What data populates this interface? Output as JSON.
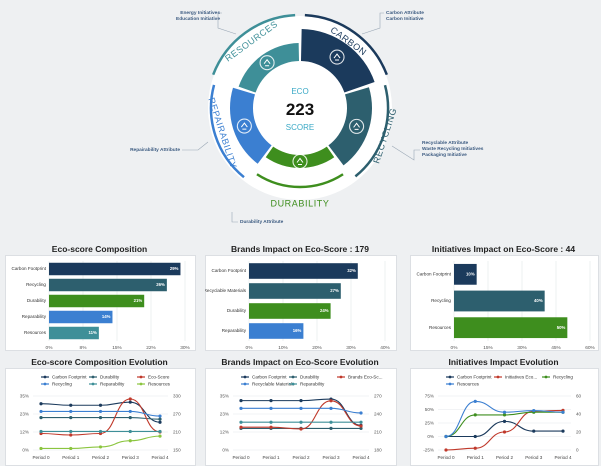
{
  "colors": {
    "carbon": "#1b3a5c",
    "recycling": "#2d5f6e",
    "durability": "#3e8e1e",
    "repairability": "#3b7fd1",
    "resources": "#3e8f98",
    "ecoscore": "#c0392b",
    "line_light": "#8bc53f"
  },
  "wheel": {
    "center_top": "ECO",
    "score": "223",
    "center_bottom": "SCORE",
    "segments": [
      {
        "key": "carbon",
        "label": "CARBON",
        "icon": "footprints-icon",
        "annotations": [
          "Carbon Attribute",
          "Carbon Initiative"
        ]
      },
      {
        "key": "recycling",
        "label": "RECYCLING",
        "icon": "recycle-clock-icon",
        "annotations": [
          "Recyclable Attribute",
          "Waste Recycling Initiatives",
          "Packaging Initiative"
        ]
      },
      {
        "key": "durability",
        "label": "DURABILITY",
        "icon": "shield-leaf-icon",
        "annotations": [
          "Durability Attribute"
        ]
      },
      {
        "key": "repairability",
        "label": "REPAIRABILITY",
        "icon": "wrench-icon",
        "annotations": [
          "Repairability Attribute"
        ]
      },
      {
        "key": "resources",
        "label": "RESOURCES",
        "icon": "recycle-icon",
        "annotations": [
          "Energy Initiatives",
          "Education Initiative"
        ]
      }
    ]
  },
  "chart_data": [
    {
      "type": "bar",
      "orientation": "horizontal",
      "title": "Eco-score Composition",
      "categories": [
        "Carbon Footprint",
        "Recycling",
        "Durability",
        "Reparability",
        "Resources"
      ],
      "values": [
        29,
        26,
        21,
        14,
        11
      ],
      "labels": [
        "29%",
        "26%",
        "21%",
        "14%",
        "11%"
      ],
      "colors": [
        "carbon",
        "recycling",
        "durability",
        "repairability",
        "resources"
      ],
      "xticks": [
        "0%",
        "8%",
        "15%",
        "22%",
        "30%"
      ],
      "xlim": [
        0,
        30
      ]
    },
    {
      "type": "bar",
      "orientation": "horizontal",
      "title": "Brands Impact on Eco-Score : 179",
      "categories": [
        "Carbon Footprint",
        "Recyclable Materials",
        "Durability",
        "Reparability"
      ],
      "values": [
        32,
        27,
        24,
        16
      ],
      "labels": [
        "32%",
        "27%",
        "24%",
        "16%"
      ],
      "colors": [
        "carbon",
        "recycling",
        "durability",
        "repairability"
      ],
      "xticks": [
        "0%",
        "10%",
        "20%",
        "30%",
        "40%"
      ],
      "xlim": [
        0,
        40
      ]
    },
    {
      "type": "bar",
      "orientation": "horizontal",
      "title": "Initiatives Impact on Eco-Score : 44",
      "categories": [
        "Carbon Footprint",
        "Recycling",
        "Resources"
      ],
      "values": [
        10,
        40,
        50
      ],
      "labels": [
        "10%",
        "40%",
        "50%"
      ],
      "colors": [
        "carbon",
        "recycling",
        "durability"
      ],
      "xticks": [
        "0%",
        "15%",
        "30%",
        "45%",
        "60%"
      ],
      "xlim": [
        0,
        60
      ]
    },
    {
      "type": "line",
      "title": "Eco-score Composition Evolution",
      "categories": [
        "Period 0",
        "Period 1",
        "Period 2",
        "Period 3",
        "Period 4"
      ],
      "yticks_left": [
        "0%",
        "12%",
        "23%",
        "35%"
      ],
      "yticks_right": [
        "150",
        "210",
        "270",
        "330"
      ],
      "ylim_left": [
        0,
        35
      ],
      "ylim_right": [
        150,
        330
      ],
      "legend_position": "top",
      "series": [
        {
          "name": "Carbon Footprint",
          "color": "carbon",
          "axis": "left",
          "values": [
            30,
            29,
            29,
            31,
            18
          ]
        },
        {
          "name": "Durability",
          "color": "recycling",
          "axis": "left",
          "values": [
            21,
            21,
            21,
            21,
            20
          ]
        },
        {
          "name": "Eco-Score",
          "color": "ecoscore",
          "axis": "right",
          "values": [
            205,
            200,
            205,
            320,
            210
          ]
        },
        {
          "name": "Recycling",
          "color": "repairability",
          "axis": "left",
          "values": [
            25,
            25,
            25,
            25,
            22
          ]
        },
        {
          "name": "Reparability",
          "color": "resources",
          "axis": "left",
          "values": [
            12,
            12,
            12,
            12,
            12
          ]
        },
        {
          "name": "Resources",
          "color": "line_light",
          "axis": "left",
          "values": [
            1,
            1,
            2,
            6,
            9
          ]
        }
      ]
    },
    {
      "type": "line",
      "title": "Brands Impact on Eco-Score Evolution",
      "categories": [
        "Period 0",
        "Period 1",
        "Period 2",
        "Period 3",
        "Period 4"
      ],
      "yticks_left": [
        "0%",
        "12%",
        "23%",
        "35%"
      ],
      "yticks_right": [
        "180",
        "210",
        "240",
        "270"
      ],
      "ylim_left": [
        0,
        35
      ],
      "ylim_right": [
        180,
        270
      ],
      "legend_position": "top",
      "series": [
        {
          "name": "Carbon Footprint",
          "color": "carbon",
          "axis": "left",
          "values": [
            32,
            32,
            32,
            33,
            16
          ]
        },
        {
          "name": "Durability",
          "color": "recycling",
          "axis": "left",
          "values": [
            14,
            14,
            14,
            14,
            14
          ]
        },
        {
          "name": "Brands Eco-Sc...",
          "color": "ecoscore",
          "axis": "right",
          "values": [
            218,
            218,
            215,
            262,
            220
          ]
        },
        {
          "name": "Recyclable Materials",
          "color": "repairability",
          "axis": "left",
          "values": [
            27,
            27,
            27,
            27,
            24
          ]
        },
        {
          "name": "Reparability",
          "color": "resources",
          "axis": "left",
          "values": [
            18,
            18,
            18,
            18,
            18
          ]
        }
      ]
    },
    {
      "type": "line",
      "title": "Initiatives Impact Evolution",
      "categories": [
        "Period 0",
        "Period 1",
        "Period 2",
        "Period 3",
        "Period 4"
      ],
      "yticks_left": [
        "-25%",
        "0%",
        "25%",
        "50%",
        "75%"
      ],
      "yticks_right": [
        "0",
        "20",
        "40",
        "60"
      ],
      "ylim_left": [
        -25,
        75
      ],
      "ylim_right": [
        0,
        60
      ],
      "legend_position": "top",
      "series": [
        {
          "name": "Carbon Footprint",
          "color": "carbon",
          "axis": "left",
          "values": [
            0,
            0,
            28,
            10,
            10
          ]
        },
        {
          "name": "Initiatives Eco...",
          "color": "ecoscore",
          "axis": "right",
          "values": [
            0,
            2,
            20,
            43,
            44
          ]
        },
        {
          "name": "Recycling",
          "color": "durability",
          "axis": "left",
          "values": [
            0,
            40,
            40,
            45,
            45
          ]
        },
        {
          "name": "Resources",
          "color": "repairability",
          "axis": "left",
          "values": [
            0,
            65,
            45,
            48,
            45
          ]
        }
      ]
    }
  ]
}
